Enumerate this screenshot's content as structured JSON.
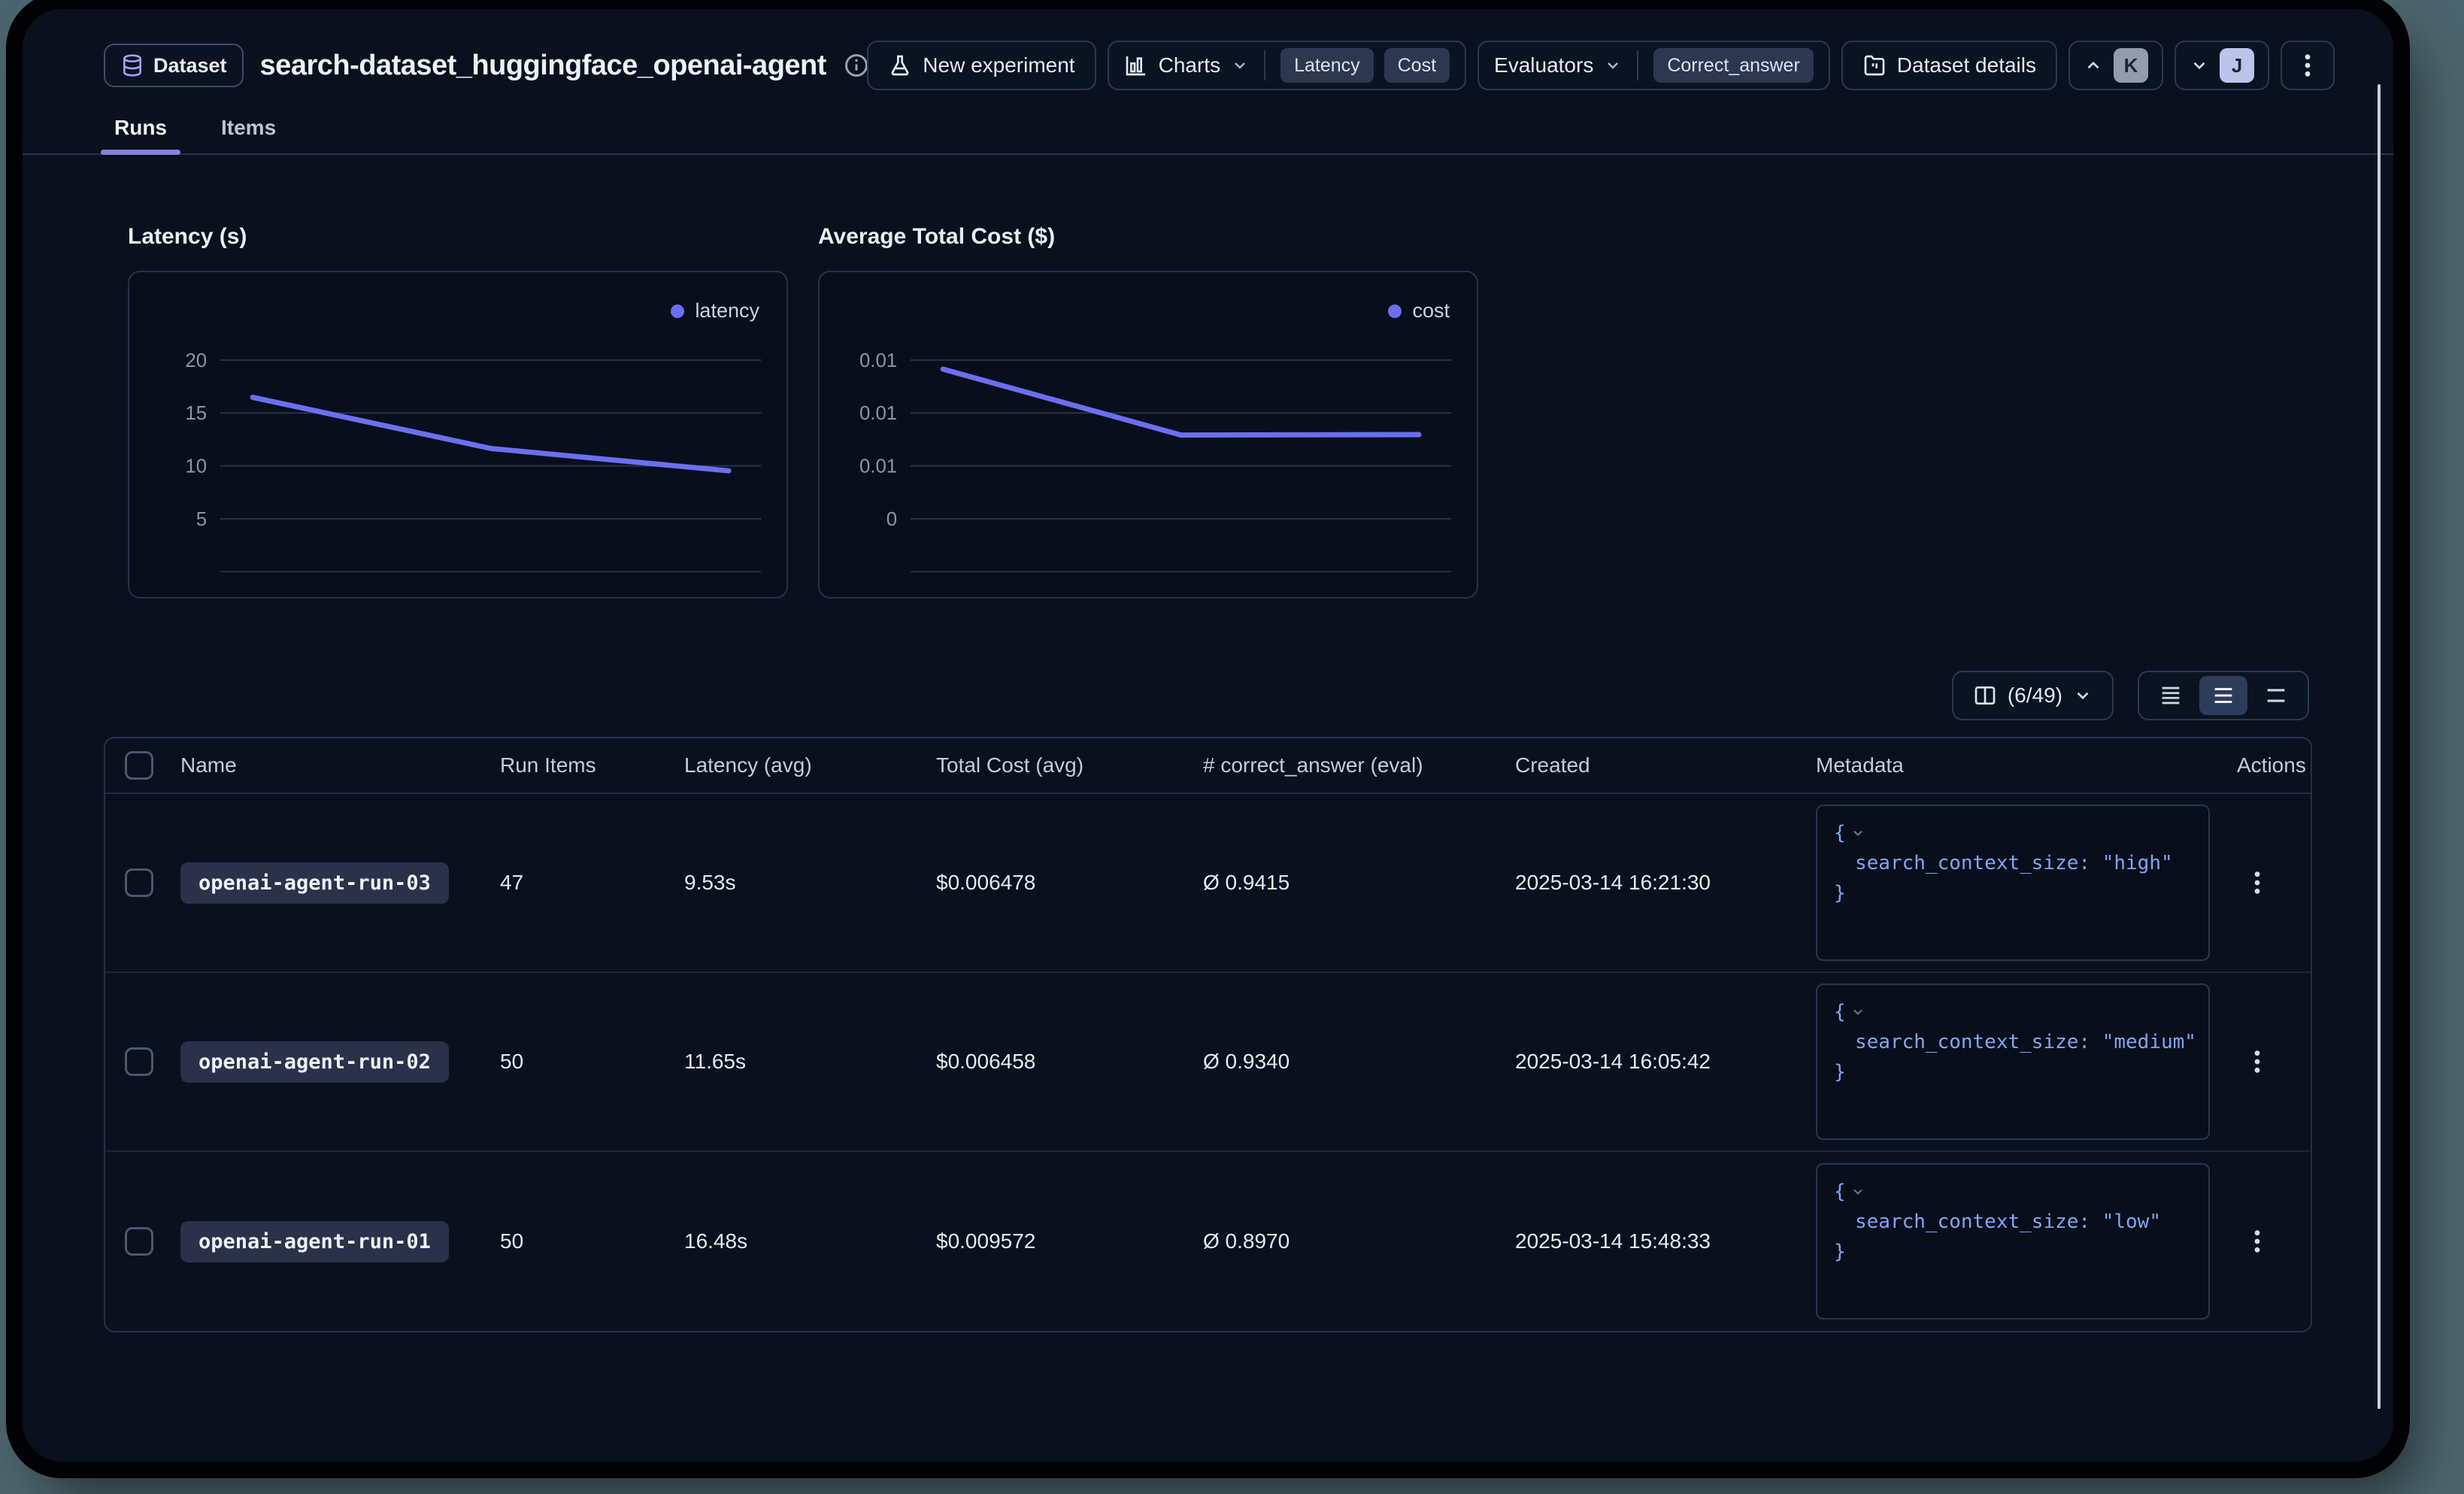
{
  "header": {
    "dataset_badge": "Dataset",
    "title": "search-dataset_huggingface_openai-agent",
    "new_experiment_label": "New experiment",
    "charts_label": "Charts",
    "chart_chips": [
      "Latency",
      "Cost"
    ],
    "evaluators_label": "Evaluators",
    "evaluator_chips": [
      "Correct_answer"
    ],
    "dataset_details_label": "Dataset details",
    "avatar_k": "K",
    "avatar_j": "J"
  },
  "tabs": [
    {
      "label": "Runs",
      "active": true
    },
    {
      "label": "Items",
      "active": false
    }
  ],
  "colors": {
    "accent_line": "#6b6ff0",
    "tab_underline": "#8a80da",
    "metadata_text": "#7ea6f6",
    "outer_background": "#4c646d"
  },
  "chart_data": [
    {
      "type": "line",
      "title": "Latency (s)",
      "legend": "latency",
      "categories": [
        "openai-agent-run-01",
        "openai-agent-run-02",
        "openai-agent-run-03"
      ],
      "series": [
        {
          "name": "latency",
          "values": [
            16.48,
            11.65,
            9.53
          ]
        }
      ],
      "yticks": [
        {
          "value": 20,
          "label": "20"
        },
        {
          "value": 15,
          "label": "15"
        },
        {
          "value": 10,
          "label": "10"
        },
        {
          "value": 5,
          "label": "5"
        },
        {
          "value": 0,
          "label": ""
        }
      ],
      "ylim": [
        0,
        20
      ],
      "x_percent": [
        6,
        50,
        94
      ],
      "grid": true,
      "legend_position": "top-right",
      "color": "#6b6ff0"
    },
    {
      "type": "line",
      "title": "Average Total Cost ($)",
      "legend": "cost",
      "categories": [
        "openai-agent-run-01",
        "openai-agent-run-02",
        "openai-agent-run-03"
      ],
      "series": [
        {
          "name": "cost",
          "values": [
            0.009572,
            0.006458,
            0.006478
          ]
        }
      ],
      "yticks": [
        {
          "value": 0.01,
          "label": "0.01"
        },
        {
          "value": 0.0075,
          "label": "0.01"
        },
        {
          "value": 0.005,
          "label": "0.01"
        },
        {
          "value": 0.0025,
          "label": "0"
        },
        {
          "value": 0,
          "label": ""
        }
      ],
      "ylim": [
        0,
        0.01
      ],
      "x_percent": [
        6,
        50,
        94
      ],
      "grid": true,
      "legend_position": "top-right",
      "color": "#6b6ff0"
    }
  ],
  "table_controls": {
    "columns_count": "(6/49)"
  },
  "table": {
    "columns": [
      "Name",
      "Run Items",
      "Latency (avg)",
      "Total Cost (avg)",
      "# correct_answer (eval)",
      "Created",
      "Metadata",
      "Actions"
    ],
    "brace_open": "{",
    "brace_close": "}",
    "rows": [
      {
        "name": "openai-agent-run-03",
        "run_items": "47",
        "latency": "9.53s",
        "total_cost": "$0.006478",
        "correct_answer": "Ø 0.9415",
        "created": "2025-03-14 16:21:30",
        "metadata_line": "search_context_size: \"high\""
      },
      {
        "name": "openai-agent-run-02",
        "run_items": "50",
        "latency": "11.65s",
        "total_cost": "$0.006458",
        "correct_answer": "Ø 0.9340",
        "created": "2025-03-14 16:05:42",
        "metadata_line": "search_context_size: \"medium\""
      },
      {
        "name": "openai-agent-run-01",
        "run_items": "50",
        "latency": "16.48s",
        "total_cost": "$0.009572",
        "correct_answer": "Ø 0.8970",
        "created": "2025-03-14 15:48:33",
        "metadata_line": "search_context_size: \"low\""
      }
    ]
  }
}
